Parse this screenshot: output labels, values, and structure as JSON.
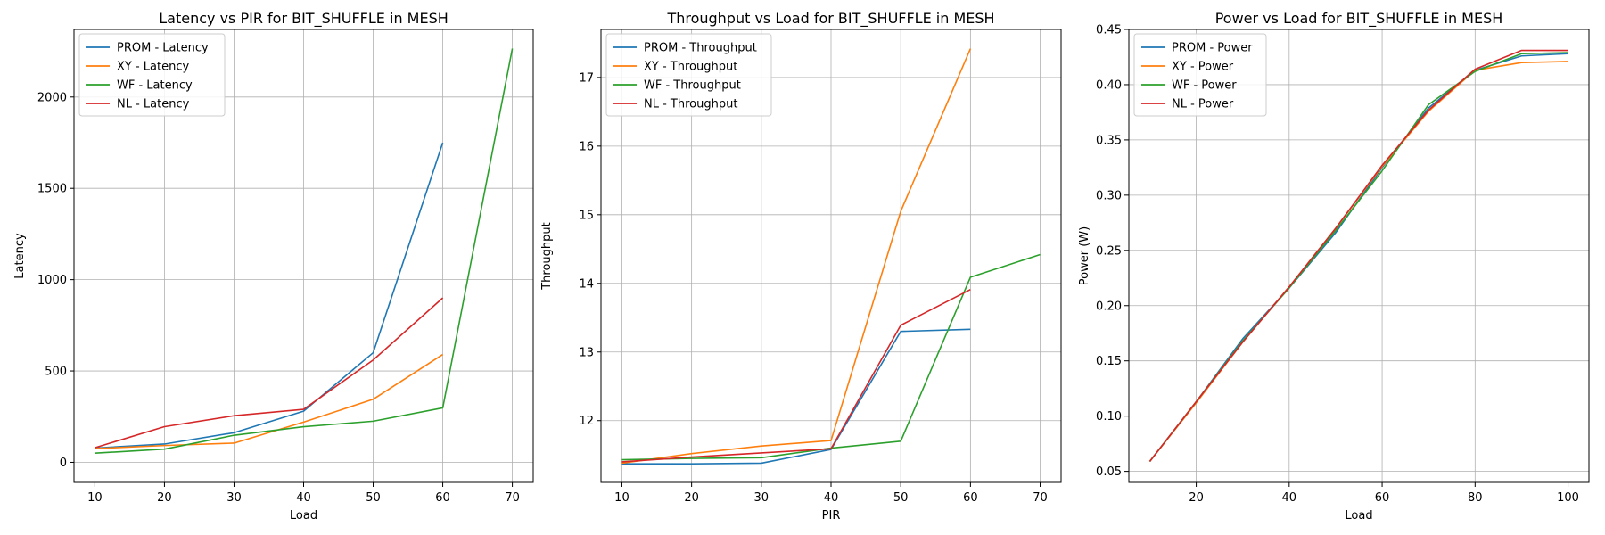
{
  "colors": {
    "PROM": "#1f77b4",
    "XY": "#ff7f0e",
    "WF": "#2ca02c",
    "NL": "#d62728",
    "grid": "#b0b0b0",
    "axis": "#000000"
  },
  "chart_data": [
    {
      "type": "line",
      "title": "Latency vs PIR for BIT_SHUFFLE in MESH",
      "xlabel": "Load",
      "ylabel": "Latency",
      "xlim": [
        7,
        73
      ],
      "ylim": [
        -110,
        2370
      ],
      "xticks": [
        10,
        20,
        30,
        40,
        50,
        60,
        70
      ],
      "yticks": [
        0,
        500,
        1000,
        1500,
        2000
      ],
      "ytick_labels": [
        "0",
        "500",
        "1000",
        "1500",
        "2000"
      ],
      "grid": true,
      "legend": "top-left",
      "series": [
        {
          "name": "PROM - Latency",
          "key": "PROM",
          "x": [
            10,
            20,
            30,
            40,
            50,
            60
          ],
          "y": [
            78,
            100,
            162,
            280,
            600,
            1750
          ]
        },
        {
          "name": "XY - Latency",
          "key": "XY",
          "x": [
            10,
            20,
            30,
            40,
            50,
            60
          ],
          "y": [
            75,
            92,
            105,
            220,
            345,
            590
          ]
        },
        {
          "name": "WF - Latency",
          "key": "WF",
          "x": [
            10,
            20,
            30,
            40,
            50,
            60,
            70
          ],
          "y": [
            50,
            72,
            148,
            195,
            225,
            298,
            2265
          ]
        },
        {
          "name": "NL - Latency",
          "key": "NL",
          "x": [
            10,
            20,
            30,
            40,
            50,
            60
          ],
          "y": [
            80,
            195,
            255,
            290,
            560,
            900
          ]
        }
      ]
    },
    {
      "type": "line",
      "title": "Throughput vs Load for BIT_SHUFFLE in MESH",
      "xlabel": "PIR",
      "ylabel": "Throughput",
      "xlim": [
        7,
        73
      ],
      "ylim": [
        11.1,
        17.7
      ],
      "xticks": [
        10,
        20,
        30,
        40,
        50,
        60,
        70
      ],
      "yticks": [
        12,
        13,
        14,
        15,
        16,
        17
      ],
      "ytick_labels": [
        "12",
        "13",
        "14",
        "15",
        "16",
        "17"
      ],
      "grid": true,
      "legend": "top-left",
      "series": [
        {
          "name": "PROM - Throughput",
          "key": "PROM",
          "x": [
            10,
            20,
            30,
            40,
            50,
            60
          ],
          "y": [
            11.37,
            11.37,
            11.38,
            11.58,
            13.3,
            13.33
          ]
        },
        {
          "name": "XY - Throughput",
          "key": "XY",
          "x": [
            10,
            20,
            30,
            40,
            50,
            60
          ],
          "y": [
            11.38,
            11.52,
            11.63,
            11.71,
            15.05,
            17.42
          ]
        },
        {
          "name": "WF - Throughput",
          "key": "WF",
          "x": [
            10,
            20,
            30,
            40,
            50,
            60,
            70
          ],
          "y": [
            11.43,
            11.45,
            11.46,
            11.6,
            11.7,
            14.09,
            14.42
          ]
        },
        {
          "name": "NL - Throughput",
          "key": "NL",
          "x": [
            10,
            20,
            30,
            40,
            50,
            60
          ],
          "y": [
            11.4,
            11.47,
            11.53,
            11.59,
            13.39,
            13.91
          ]
        }
      ]
    },
    {
      "type": "line",
      "title": "Power vs Load for BIT_SHUFFLE in MESH",
      "xlabel": "Load",
      "ylabel": "Power (W)",
      "xlim": [
        5.5,
        104.5
      ],
      "ylim": [
        0.04,
        0.45
      ],
      "xticks": [
        20,
        40,
        60,
        80,
        100
      ],
      "yticks": [
        0.05,
        0.1,
        0.15,
        0.2,
        0.25,
        0.3,
        0.35,
        0.4,
        0.45
      ],
      "ytick_labels": [
        "0.05",
        "0.10",
        "0.15",
        "0.20",
        "0.25",
        "0.30",
        "0.35",
        "0.40",
        "0.45"
      ],
      "grid": true,
      "legend": "top-left",
      "series": [
        {
          "name": "PROM - Power",
          "key": "PROM",
          "x": [
            10,
            20,
            30,
            40,
            50,
            60,
            70,
            80,
            90,
            100
          ],
          "y": [
            0.059,
            0.113,
            0.17,
            0.216,
            0.266,
            0.325,
            0.379,
            0.413,
            0.426,
            0.428
          ]
        },
        {
          "name": "XY - Power",
          "key": "XY",
          "x": [
            10,
            20,
            30,
            40,
            50,
            60,
            70,
            80,
            90,
            100
          ],
          "y": [
            0.059,
            0.112,
            0.167,
            0.217,
            0.27,
            0.326,
            0.376,
            0.413,
            0.42,
            0.421
          ]
        },
        {
          "name": "WF - Power",
          "key": "WF",
          "x": [
            10,
            20,
            30,
            40,
            50,
            60,
            70,
            80,
            90,
            100
          ],
          "y": [
            0.059,
            0.113,
            0.168,
            0.216,
            0.268,
            0.322,
            0.382,
            0.412,
            0.428,
            0.429
          ]
        },
        {
          "name": "NL - Power",
          "key": "NL",
          "x": [
            10,
            20,
            30,
            40,
            50,
            60,
            70,
            80,
            90,
            100
          ],
          "y": [
            0.059,
            0.113,
            0.167,
            0.217,
            0.27,
            0.327,
            0.377,
            0.414,
            0.431,
            0.431
          ]
        }
      ]
    }
  ]
}
